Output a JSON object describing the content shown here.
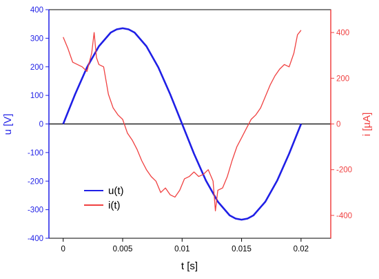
{
  "chart_data": {
    "type": "line",
    "x_axis": {
      "label": "t [s]",
      "range": [
        -0.0012,
        0.0225
      ],
      "ticks": [
        0,
        0.005,
        0.01,
        0.015,
        0.02
      ],
      "tick_labels": [
        "0",
        "0.005",
        "0.01",
        "0.015",
        "0.02"
      ]
    },
    "y_left": {
      "label": "u [V]",
      "color": "#1f1fe6",
      "range": [
        -400,
        400
      ],
      "ticks": [
        -400,
        -300,
        -200,
        -100,
        0,
        100,
        200,
        300,
        400
      ],
      "tick_labels": [
        "-400",
        "-300",
        "-200",
        "-100",
        "0",
        "100",
        "200",
        "300",
        "400"
      ]
    },
    "y_right": {
      "label": "i [µA]",
      "color": "#f04040",
      "range": [
        -500,
        500
      ],
      "ticks": [
        -400,
        -200,
        0,
        200,
        400
      ],
      "tick_labels": [
        "-400",
        "-200",
        "0",
        "200",
        "400"
      ]
    },
    "zero_line": true,
    "grid": false,
    "legend": {
      "position": "bottom-left",
      "entries": [
        {
          "name": "u(t)",
          "color": "#1f1fe6"
        },
        {
          "name": "i(t)",
          "color": "#f04040"
        }
      ]
    },
    "series": [
      {
        "name": "u(t)",
        "axis": "left",
        "color": "#1f1fe6",
        "x": [
          0,
          0.001,
          0.002,
          0.003,
          0.004,
          0.0045,
          0.005,
          0.0055,
          0.006,
          0.007,
          0.008,
          0.009,
          0.01,
          0.011,
          0.012,
          0.013,
          0.014,
          0.0145,
          0.015,
          0.0155,
          0.016,
          0.017,
          0.018,
          0.019,
          0.02
        ],
        "y": [
          0,
          104,
          198,
          272,
          320,
          331,
          335,
          331,
          320,
          272,
          198,
          104,
          0,
          -104,
          -198,
          -272,
          -320,
          -331,
          -335,
          -331,
          -320,
          -272,
          -198,
          -104,
          0
        ]
      },
      {
        "name": "i(t)",
        "axis": "right",
        "color": "#f04040",
        "x": [
          0,
          0.0004,
          0.0008,
          0.0012,
          0.0016,
          0.002,
          0.0024,
          0.0026,
          0.0028,
          0.003,
          0.0034,
          0.0038,
          0.0042,
          0.0046,
          0.005,
          0.0054,
          0.0058,
          0.0062,
          0.0066,
          0.007,
          0.0074,
          0.0078,
          0.0082,
          0.0086,
          0.009,
          0.0094,
          0.0098,
          0.0102,
          0.0106,
          0.011,
          0.0114,
          0.0118,
          0.0122,
          0.0126,
          0.0128,
          0.013,
          0.0134,
          0.0138,
          0.0142,
          0.0146,
          0.015,
          0.0154,
          0.0158,
          0.0162,
          0.0166,
          0.017,
          0.0174,
          0.0178,
          0.0182,
          0.0186,
          0.019,
          0.0194,
          0.0197,
          0.02
        ],
        "y": [
          380,
          330,
          270,
          260,
          250,
          230,
          310,
          400,
          290,
          260,
          250,
          130,
          70,
          40,
          20,
          -40,
          -70,
          -110,
          -160,
          -200,
          -230,
          -250,
          -300,
          -280,
          -310,
          -320,
          -290,
          -240,
          -230,
          -210,
          -230,
          -220,
          -200,
          -250,
          -380,
          -290,
          -280,
          -230,
          -160,
          -100,
          -60,
          -20,
          20,
          40,
          70,
          120,
          170,
          210,
          240,
          260,
          250,
          310,
          390,
          410
        ]
      }
    ]
  }
}
